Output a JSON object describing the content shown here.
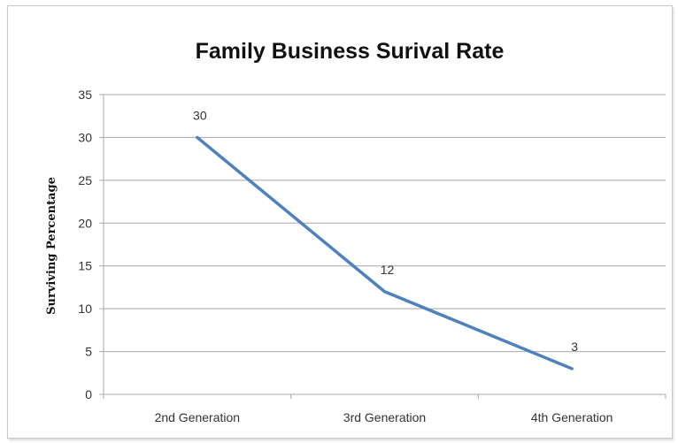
{
  "chart_data": {
    "type": "line",
    "title": "Family Business Surival Rate",
    "xlabel": "",
    "ylabel": "Surviving Percentage",
    "categories": [
      "2nd Generation",
      "3rd Generation",
      "4th Generation"
    ],
    "series": [
      {
        "values": [
          30,
          12,
          3
        ],
        "color": "#4f81bd"
      }
    ],
    "data_labels": [
      "30",
      "12",
      "3"
    ],
    "ylim": [
      0,
      35
    ],
    "yticks": [
      0,
      5,
      10,
      15,
      20,
      25,
      30,
      35
    ],
    "grid": true,
    "legend": "none"
  }
}
